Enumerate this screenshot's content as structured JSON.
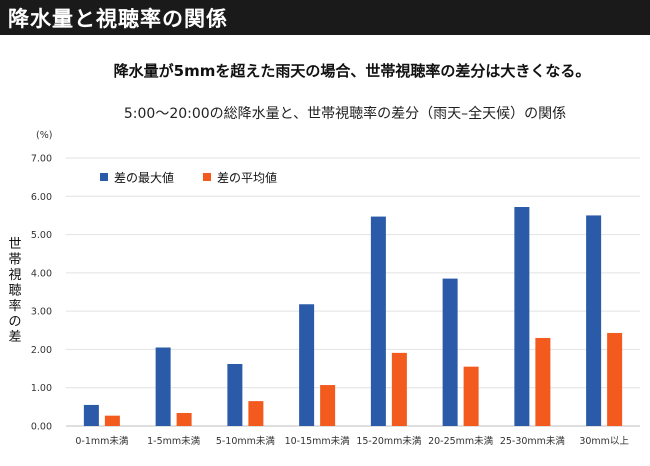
{
  "page": {
    "header": "降水量と視聴率の関係",
    "subheading": "降水量が5mmを超えた雨天の場合、世帯視聴率の差分は大きくなる。"
  },
  "chart_data": {
    "type": "bar",
    "title": "5:00～20:00の総降水量と、世帯視聴率の差分（雨天–全天候）の関係",
    "unit": "(%)",
    "ylabel": "世帯視聴率の差",
    "ylabel_chars": [
      "世",
      "帯",
      "視",
      "聴",
      "率",
      "の",
      "差"
    ],
    "xlabel": "",
    "ylim": [
      0,
      7
    ],
    "yticks": [
      "0.00",
      "1.00",
      "2.00",
      "3.00",
      "4.00",
      "5.00",
      "6.00",
      "7.00"
    ],
    "grid": true,
    "legend_position": "top-left",
    "categories": [
      "0-1mm未満",
      "1-5mm未満",
      "5-10mm未満",
      "10-15mm未満",
      "15-20mm未満",
      "20-25mm未満",
      "25-30mm未満",
      "30mm以上"
    ],
    "series": [
      {
        "name": "差の最大値",
        "color": "#2a5aa8",
        "values": [
          0.55,
          2.05,
          1.62,
          3.18,
          5.47,
          3.85,
          5.72,
          5.5
        ]
      },
      {
        "name": "差の平均値",
        "color": "#f25a1e",
        "values": [
          0.27,
          0.34,
          0.65,
          1.07,
          1.91,
          1.55,
          2.3,
          2.43
        ]
      }
    ]
  }
}
